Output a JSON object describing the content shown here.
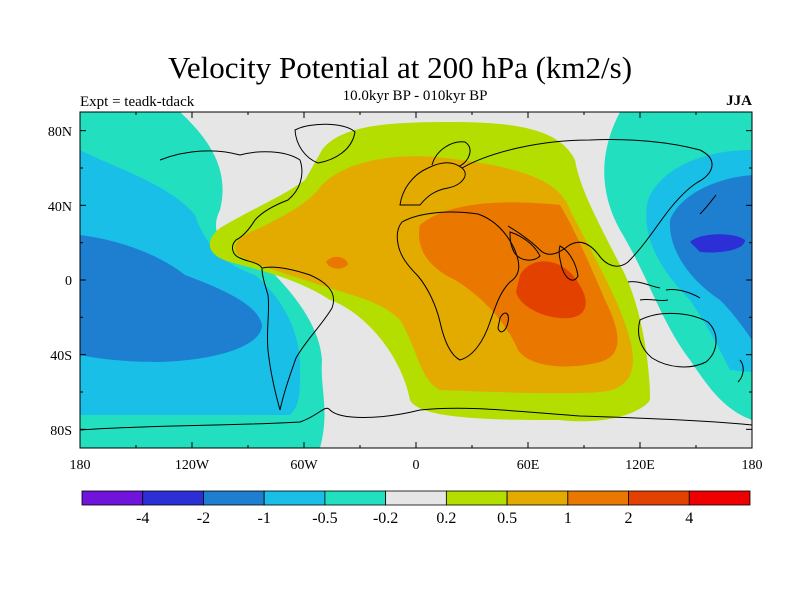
{
  "map": {
    "title": "Velocity Potential at 200 hPa (km2/s)",
    "subtitle": "10.0kyr BP - 010kyr BP",
    "experiment_label": "Expt = teadk-tdack",
    "season_label": "JJA",
    "lat_ticks": [
      "80N",
      "40N",
      "0",
      "40S",
      "80S"
    ],
    "lon_ticks": [
      "180",
      "120W",
      "60W",
      "0",
      "60E",
      "120E",
      "180"
    ],
    "field_bands": [
      {
        "level": "-4 to -2",
        "color": "#2c2fd6"
      },
      {
        "level": "-2 to -1",
        "color": "#1e7fd0"
      },
      {
        "level": "-1 to -0.5",
        "color": "#19bfe6"
      },
      {
        "level": "-0.5 to -0.2",
        "color": "#22dfc0"
      },
      {
        "level": "-0.2 to 0.2",
        "color": "#e6e6e6"
      },
      {
        "level": "0.2 to 0.5",
        "color": "#b4dd00"
      },
      {
        "level": "0.5 to 1",
        "color": "#e3aa00"
      },
      {
        "level": "1 to 2",
        "color": "#e97700"
      },
      {
        "level": "2 to 4",
        "color": "#e24100"
      }
    ]
  },
  "colorbar": {
    "labels": [
      "-4",
      "-2",
      "-1",
      "-0.5",
      "-0.2",
      "0.2",
      "0.5",
      "1",
      "2",
      "4"
    ],
    "colors": [
      "#7014dc",
      "#2c2fd6",
      "#1e7fd0",
      "#19bfe6",
      "#22dfc0",
      "#e6e6e6",
      "#b4dd00",
      "#e3aa00",
      "#e97700",
      "#e24100",
      "#ee0000"
    ]
  }
}
